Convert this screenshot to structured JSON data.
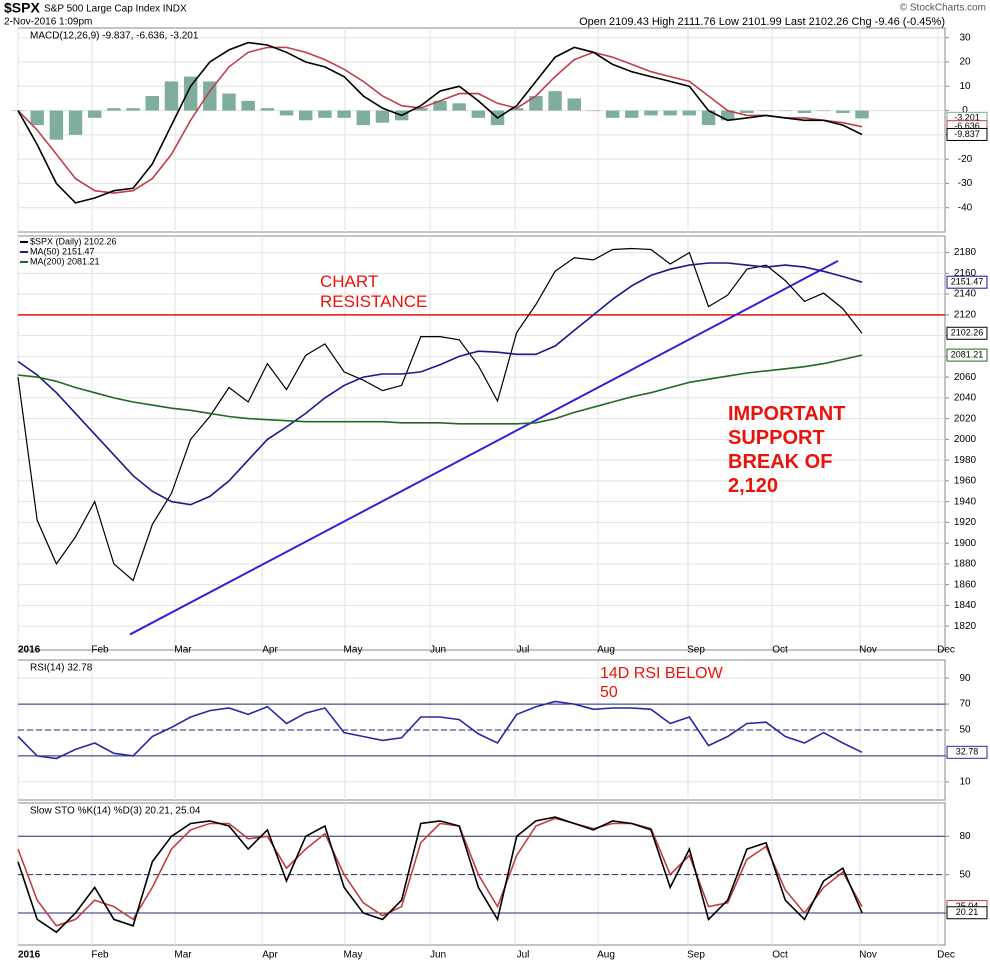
{
  "header": {
    "symbol": "$SPX",
    "name": "S&P 500 Large Cap Index INDX",
    "date": "2-Nov-2016 1:09pm",
    "quote": "Open 2109.43 High 2111.76 Low 2101.99 Last 2102.26 Chg -9.46 (-0.45%)",
    "credit": "© StockCharts.com"
  },
  "x_labels": [
    "2016",
    "Feb",
    "Mar",
    "Apr",
    "May",
    "Jun",
    "Jul",
    "Aug",
    "Sep",
    "Oct",
    "Nov",
    "Dec"
  ],
  "chart_data": [
    {
      "type": "line",
      "title": "MACD(12,26,9) -9.837, -6.636, -3.201",
      "ylim": [
        -50,
        34
      ],
      "yticks": [
        30,
        20,
        10,
        0,
        -10,
        -20,
        -30,
        -40
      ],
      "series": [
        {
          "kind": "bar",
          "color": "#7fae9e",
          "values": [
            0,
            -6,
            -12,
            -10,
            -3,
            1,
            1,
            6,
            12,
            14,
            12,
            7,
            4,
            1,
            -2,
            -4,
            -3,
            -3,
            -6,
            -5,
            -4,
            1,
            4,
            3,
            -3,
            -6,
            1,
            6,
            8,
            5,
            0,
            -3,
            -3,
            -2,
            -2,
            -2,
            -6,
            -4,
            -1,
            0,
            0,
            -1,
            0,
            -1,
            -3.201
          ]
        },
        {
          "color": "#c0404a",
          "values": [
            0,
            -8,
            -18,
            -28,
            -33,
            -34,
            -33,
            -28,
            -18,
            -4,
            8,
            18,
            24,
            26,
            26,
            24,
            21,
            17,
            12,
            6,
            2,
            1,
            4,
            7,
            7,
            3,
            1,
            6,
            14,
            21,
            24,
            22,
            19,
            16,
            14,
            12,
            6,
            0,
            -2,
            -2,
            -3,
            -3,
            -4,
            -5,
            -6.636
          ]
        },
        {
          "color": "#000000",
          "values": [
            0,
            -14,
            -30,
            -38,
            -36,
            -33,
            -32,
            -22,
            -6,
            10,
            20,
            25,
            28,
            27,
            24,
            20,
            18,
            14,
            6,
            1,
            -2,
            2,
            8,
            10,
            4,
            -3,
            2,
            12,
            22,
            26,
            24,
            19,
            16,
            14,
            12,
            10,
            0,
            -4,
            -3,
            -2,
            -3,
            -4,
            -4,
            -6,
            -9.837
          ]
        }
      ]
    },
    {
      "type": "line",
      "ylim": [
        1797,
        2196
      ],
      "yticks": [
        1820,
        1840,
        1860,
        1880,
        1900,
        1920,
        1940,
        1960,
        1980,
        2000,
        2020,
        2040,
        2060,
        2080,
        2100,
        2120,
        2140,
        2160,
        2180
      ],
      "resistance": {
        "value": 2120,
        "color": "#e8140c"
      },
      "trendline": {
        "start": 1812,
        "end": 2172,
        "color": "#3a1fd6"
      },
      "annotations": [
        "CHART RESISTANCE",
        "IMPORTANT SUPPORT BREAK OF 2,120"
      ],
      "series": [
        {
          "name": "$SPX (Daily) 2102.26",
          "color": "#000000",
          "values": [
            2060,
            1922,
            1880,
            1906,
            1940,
            1880,
            1864,
            1918,
            1948,
            2000,
            2022,
            2050,
            2036,
            2073,
            2048,
            2081,
            2092,
            2065,
            2057,
            2047,
            2052,
            2099,
            2099,
            2096,
            2071,
            2037,
            2103,
            2130,
            2162,
            2175,
            2173,
            2183,
            2184,
            2183,
            2169,
            2180,
            2128,
            2139,
            2164,
            2168,
            2153,
            2133,
            2141,
            2126,
            2102.26
          ]
        },
        {
          "name": "MA(50) 2151.47",
          "color": "#1a1a8c",
          "values": [
            2075,
            2062,
            2045,
            2025,
            2005,
            1985,
            1965,
            1950,
            1940,
            1937,
            1945,
            1960,
            1980,
            2000,
            2012,
            2025,
            2040,
            2052,
            2060,
            2063,
            2063,
            2065,
            2072,
            2080,
            2085,
            2084,
            2082,
            2082,
            2090,
            2105,
            2120,
            2135,
            2148,
            2158,
            2164,
            2168,
            2170,
            2170,
            2168,
            2166,
            2168,
            2166,
            2162,
            2157,
            2151.47
          ]
        },
        {
          "name": "MA(200) 2081.21",
          "color": "#1f6b1f",
          "values": [
            2062,
            2060,
            2056,
            2050,
            2045,
            2040,
            2036,
            2033,
            2030,
            2028,
            2025,
            2022,
            2020,
            2019,
            2018,
            2017,
            2017,
            2017,
            2017,
            2017,
            2016,
            2016,
            2016,
            2015,
            2015,
            2015,
            2015,
            2016,
            2020,
            2026,
            2031,
            2036,
            2041,
            2045,
            2050,
            2055,
            2058,
            2061,
            2064,
            2066,
            2068,
            2070,
            2073,
            2077,
            2081.21
          ]
        }
      ]
    },
    {
      "type": "line",
      "title": "RSI(14) 32.78",
      "ylim": [
        -4,
        104
      ],
      "yticks": [
        90,
        70,
        50,
        30,
        10
      ],
      "levels": {
        "solid": [
          70,
          30
        ],
        "dashed": [
          50
        ]
      },
      "annotations": [
        "14D RSI BELOW 50"
      ],
      "series": [
        {
          "color": "#2a2aa0",
          "values": [
            45,
            30,
            28,
            35,
            40,
            32,
            30,
            45,
            52,
            60,
            65,
            67,
            62,
            68,
            55,
            63,
            67,
            48,
            45,
            42,
            44,
            60,
            60,
            58,
            47,
            40,
            62,
            68,
            72,
            70,
            66,
            67,
            67,
            66,
            55,
            60,
            38,
            45,
            55,
            56,
            45,
            40,
            48,
            40,
            32.78
          ]
        }
      ]
    },
    {
      "type": "line",
      "title": "Slow STO %K(14) %D(3) 20.21, 25.04",
      "ylim": [
        -5,
        106
      ],
      "yticks": [
        80,
        50,
        20
      ],
      "levels": {
        "solid": [
          80,
          20
        ],
        "dashed": [
          50
        ]
      },
      "series": [
        {
          "color": "#c04040",
          "values": [
            70,
            30,
            10,
            15,
            30,
            25,
            15,
            40,
            70,
            85,
            90,
            90,
            78,
            80,
            55,
            70,
            82,
            50,
            28,
            18,
            25,
            75,
            90,
            88,
            50,
            25,
            65,
            88,
            94,
            90,
            86,
            90,
            90,
            86,
            50,
            65,
            25,
            28,
            62,
            72,
            38,
            20,
            40,
            52,
            25.04
          ]
        },
        {
          "color": "#000000",
          "values": [
            60,
            15,
            5,
            20,
            40,
            15,
            10,
            60,
            80,
            90,
            92,
            88,
            70,
            85,
            45,
            80,
            88,
            40,
            20,
            15,
            30,
            90,
            92,
            88,
            40,
            15,
            80,
            92,
            95,
            90,
            85,
            92,
            90,
            85,
            40,
            70,
            15,
            30,
            70,
            75,
            30,
            15,
            45,
            55,
            20.21
          ]
        }
      ]
    }
  ]
}
